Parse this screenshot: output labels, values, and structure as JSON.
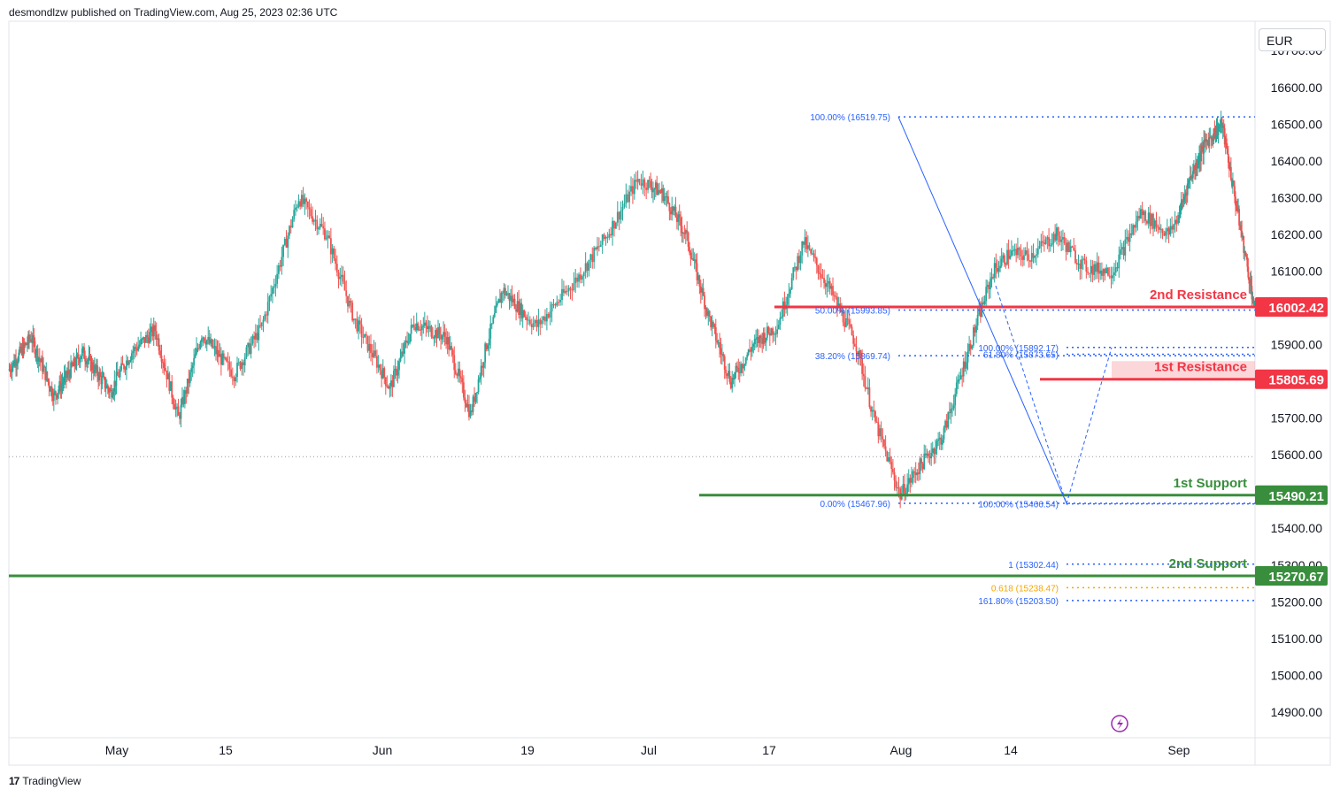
{
  "header": {
    "text": "desmondlzw published on TradingView.com, Aug 25, 2023 02:36 UTC"
  },
  "footer": {
    "brand": "TradingView",
    "logo": "17"
  },
  "currency_button": {
    "label": "EUR"
  },
  "icons": {
    "bolt": "lightning-bolt-icon",
    "logo": "tradingview-logo-icon"
  },
  "colors": {
    "up": "#26a69a",
    "down": "#ef5350",
    "resistance": "#f23645",
    "support": "#388e3c",
    "fib": "#2962ff",
    "golden": "#f7a600"
  },
  "chart_data": {
    "type": "candlestick",
    "title": "",
    "xlabel": "",
    "ylabel": "",
    "ylim": [
      14830,
      16780
    ],
    "y_ticks": [
      14900,
      15000,
      15100,
      15200,
      15300,
      15400,
      15500,
      15600,
      15700,
      15800,
      15900,
      16000,
      16100,
      16200,
      16300,
      16400,
      16500,
      16600,
      16700
    ],
    "y_tick_labels": [
      "14900.00",
      "15000.00",
      "15100.00",
      "15200.00",
      "15300.00",
      "15400.00",
      "15500.00",
      "15600.00",
      "15700.00",
      "15800.00",
      "15900.00",
      "16000.00",
      "16100.00",
      "16200.00",
      "16300.00",
      "16400.00",
      "16500.00",
      "16600.00",
      "16700.00"
    ],
    "x_axis": [
      {
        "label": "May",
        "date": "2023-05-01"
      },
      {
        "label": "15",
        "date": "2023-05-15"
      },
      {
        "label": "Jun",
        "date": "2023-06-01"
      },
      {
        "label": "19",
        "date": "2023-06-19"
      },
      {
        "label": "Jul",
        "date": "2023-07-01"
      },
      {
        "label": "17",
        "date": "2023-07-17"
      },
      {
        "label": "Aug",
        "date": "2023-08-01"
      },
      {
        "label": "14",
        "date": "2023-08-14"
      },
      {
        "label": "Sep",
        "date": "2023-09-01"
      }
    ],
    "x_range": [
      "2023-04-12",
      "2023-09-15"
    ],
    "current_price": 15595,
    "price_path": [
      [
        "2023-04-12",
        15830
      ],
      [
        "2023-04-16",
        15920
      ],
      [
        "2023-04-20",
        15760
      ],
      [
        "2023-04-25",
        15880
      ],
      [
        "2023-04-30",
        15770
      ],
      [
        "2023-05-03",
        15880
      ],
      [
        "2023-05-06",
        15940
      ],
      [
        "2023-05-09",
        15700
      ],
      [
        "2023-05-12",
        15930
      ],
      [
        "2023-05-16",
        15820
      ],
      [
        "2023-05-19",
        15950
      ],
      [
        "2023-05-23",
        16300
      ],
      [
        "2023-05-26",
        16200
      ],
      [
        "2023-05-29",
        15970
      ],
      [
        "2023-06-02",
        15780
      ],
      [
        "2023-06-05",
        15960
      ],
      [
        "2023-06-09",
        15920
      ],
      [
        "2023-06-12",
        15710
      ],
      [
        "2023-06-14",
        15900
      ],
      [
        "2023-06-16",
        16050
      ],
      [
        "2023-06-20",
        15950
      ],
      [
        "2023-06-24",
        16080
      ],
      [
        "2023-06-27",
        16200
      ],
      [
        "2023-06-30",
        16350
      ],
      [
        "2023-07-03",
        16310
      ],
      [
        "2023-07-06",
        16200
      ],
      [
        "2023-07-09",
        15980
      ],
      [
        "2023-07-12",
        15800
      ],
      [
        "2023-07-15",
        15900
      ],
      [
        "2023-07-18",
        15950
      ],
      [
        "2023-07-21",
        16180
      ],
      [
        "2023-07-24",
        16050
      ],
      [
        "2023-07-27",
        15900
      ],
      [
        "2023-07-29",
        15700
      ],
      [
        "2023-08-01",
        15490
      ],
      [
        "2023-08-03",
        15560
      ],
      [
        "2023-08-06",
        15650
      ],
      [
        "2023-08-09",
        15880
      ],
      [
        "2023-08-12",
        16100
      ],
      [
        "2023-08-14",
        16150
      ],
      [
        "2023-08-16",
        16140
      ],
      [
        "2023-08-19",
        16200
      ],
      [
        "2023-08-22",
        16110
      ],
      [
        "2023-08-25",
        16100
      ],
      [
        "2023-08-28",
        16260
      ],
      [
        "2023-08-31",
        16200
      ],
      [
        "2023-09-03",
        16350
      ],
      [
        "2023-09-06",
        16450
      ],
      [
        "2023-09-09",
        16500
      ],
      [
        "2023-09-12",
        16250
      ],
      [
        "2023-09-15",
        16000
      ]
    ],
    "annotations": {
      "resistance_2": {
        "label": "2nd Resistance",
        "price": 16002.42,
        "price_label": "16002.42"
      },
      "resistance_1": {
        "label": "1st Resistance",
        "price": 15805.69,
        "price_label": "15805.69"
      },
      "support_1": {
        "label": "1st Support",
        "price": 15490.21,
        "price_label": "15490.21"
      },
      "support_2": {
        "label": "2nd Support",
        "price": 15270.67,
        "price_label": "15270.67"
      },
      "fib_retracement": [
        {
          "label": "100.00% (16519.75)",
          "price": 16519.75
        },
        {
          "label": "50.00% (15993.85)",
          "price": 15993.85
        },
        {
          "label": "38.20% (15869.74)",
          "price": 15869.74
        },
        {
          "label": "0.00% (15467.96)",
          "price": 15467.96
        }
      ],
      "fib_extension": [
        {
          "label": "100.00% (15892.17)",
          "price": 15892.17
        },
        {
          "label": "61.80% (15873.65)",
          "price": 15873.65
        },
        {
          "label": "100.00% (15466.54)",
          "price": 15466.54
        },
        {
          "label": "1 (15302.44)",
          "price": 15302.44
        },
        {
          "label": "0.618 (15238.47)",
          "price": 15238.47
        },
        {
          "label": "161.80% (15203.50)",
          "price": 15203.5
        }
      ]
    }
  }
}
